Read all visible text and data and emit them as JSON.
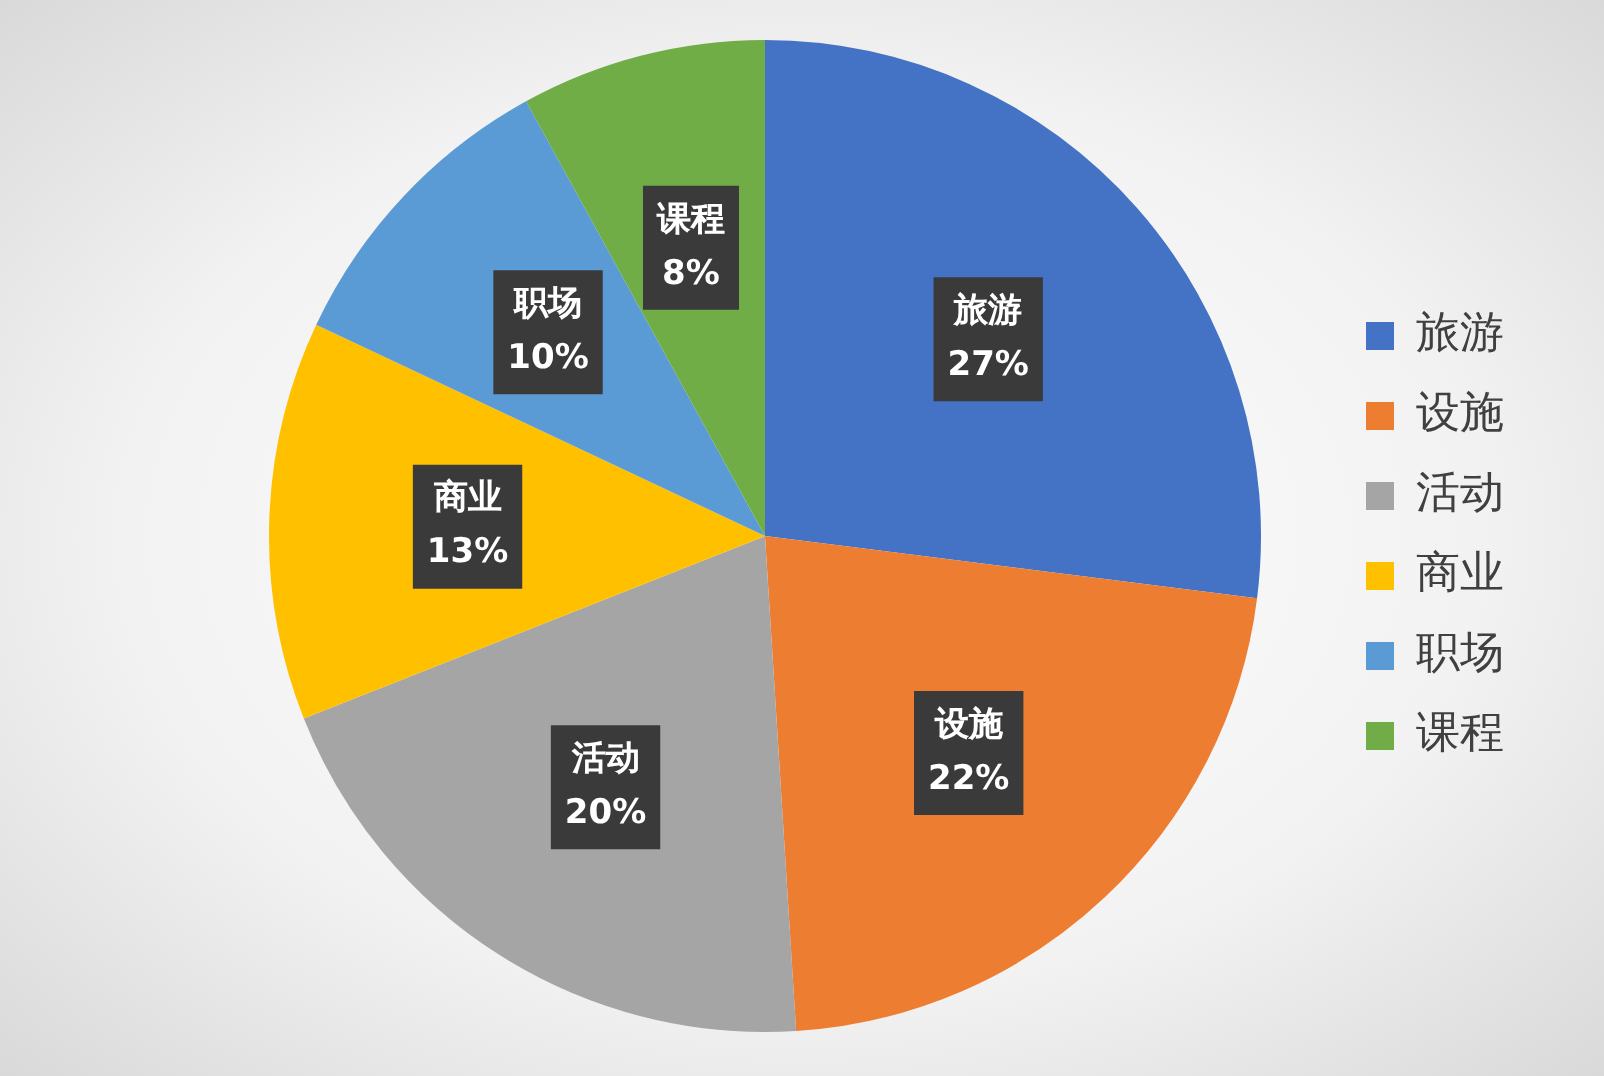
{
  "chart_data": {
    "type": "pie",
    "categories": [
      "旅游",
      "设施",
      "活动",
      "商业",
      "职场",
      "课程"
    ],
    "values": [
      27,
      22,
      20,
      13,
      10,
      8
    ],
    "colors": [
      "#4472c4",
      "#ed7d31",
      "#a5a5a5",
      "#ffc000",
      "#5b9bd5",
      "#70ad47"
    ],
    "value_labels": [
      "27%",
      "22%",
      "20%",
      "13%",
      "10%",
      "8%"
    ],
    "legend": "right"
  }
}
